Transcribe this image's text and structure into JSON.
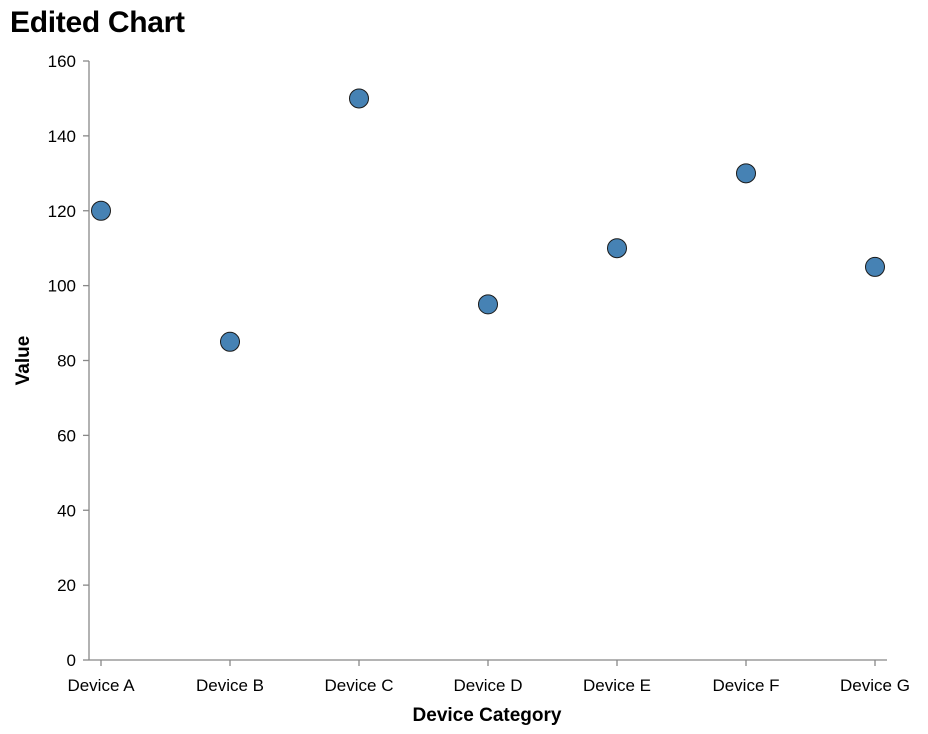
{
  "chart_data": {
    "type": "scatter",
    "title": "Edited Chart",
    "xlabel": "Device Category",
    "ylabel": "Value",
    "categories": [
      "Device A",
      "Device B",
      "Device C",
      "Device D",
      "Device E",
      "Device F",
      "Device G"
    ],
    "values": [
      120,
      85,
      150,
      95,
      110,
      130,
      105
    ],
    "ylim": [
      0,
      160
    ],
    "yticks": [
      0,
      20,
      40,
      60,
      80,
      100,
      120,
      140,
      160
    ],
    "grid": false,
    "colors": {
      "point_fill": "#4682b4",
      "point_stroke": "#1a1a1a",
      "axis": "#888888"
    }
  }
}
